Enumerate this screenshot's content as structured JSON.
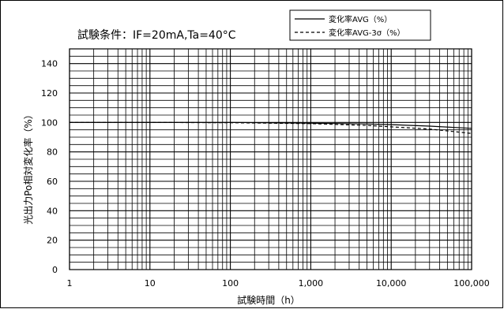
{
  "chart_data": {
    "type": "line",
    "condition_text": "試験条件：IF=20mA,Ta=40°C",
    "xlabel": "試験時間（h）",
    "ylabel": "光出力Po相対変化率（%）",
    "x_scale": "log",
    "xlim": [
      1,
      100000
    ],
    "ylim": [
      0,
      150
    ],
    "x_ticks": [
      1,
      10,
      100,
      1000,
      10000,
      100000
    ],
    "x_tick_labels": [
      "1",
      "10",
      "100",
      "1,000",
      "10,000",
      "100,000"
    ],
    "y_ticks": [
      0,
      20,
      40,
      60,
      80,
      100,
      120,
      140
    ],
    "y_tick_labels": [
      "0",
      "20",
      "40",
      "60",
      "80",
      "100",
      "120",
      "140"
    ],
    "y_minor_step": 5,
    "grid": true,
    "legend_position": "top-right",
    "series": [
      {
        "name": "変化率AVG（%）",
        "style": "solid",
        "x": [
          1,
          10,
          100,
          1000,
          5000,
          10000,
          30000,
          100000
        ],
        "y": [
          100,
          100,
          100,
          99.5,
          99,
          98.5,
          97.5,
          96
        ]
      },
      {
        "name": "変化率AVG-3σ（%）",
        "style": "dashed",
        "x": [
          1,
          10,
          100,
          1000,
          5000,
          10000,
          30000,
          100000
        ],
        "y": [
          100,
          100,
          99.8,
          99.2,
          98,
          97,
          95.5,
          92.5
        ]
      }
    ]
  }
}
